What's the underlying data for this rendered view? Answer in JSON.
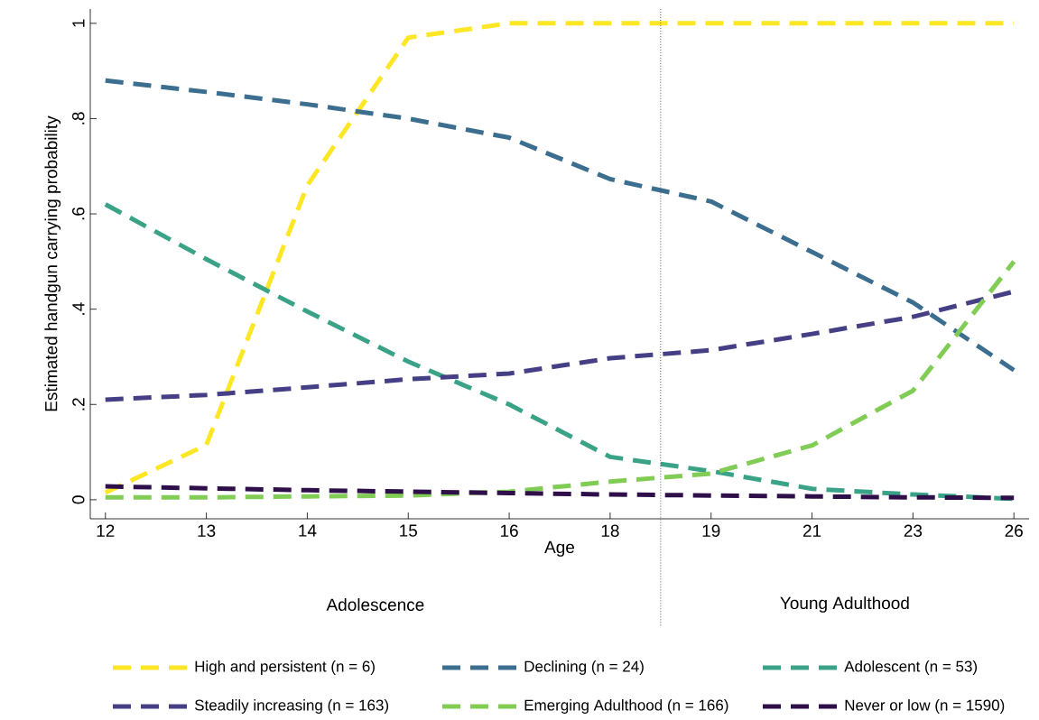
{
  "chart_data": {
    "type": "line",
    "xlabel": "Age",
    "ylabel": "Estimated handgun carrying probability",
    "categories": [
      "12",
      "13",
      "14",
      "15",
      "16",
      "18",
      "19",
      "21",
      "23",
      "26"
    ],
    "ylim": [
      -0.04,
      1.03
    ],
    "yticks": [
      0,
      {
        "value": 0.2,
        "label": ".2"
      },
      {
        "value": 0.4,
        "label": ".4"
      },
      {
        "value": 0.6,
        "label": ".6"
      },
      {
        "value": 0.8,
        "label": ".8"
      },
      1
    ],
    "series": [
      {
        "name": "High and persistent (n = 6)",
        "color": "#fde725",
        "values": [
          0.015,
          0.115,
          0.66,
          0.97,
          1.0,
          1.0,
          1.0,
          1.0,
          1.0,
          1.0
        ]
      },
      {
        "name": "Declining (n = 24)",
        "color": "#3b6e8f",
        "values": [
          0.88,
          0.856,
          0.83,
          0.8,
          0.76,
          0.673,
          0.626,
          0.52,
          0.414,
          0.272
        ]
      },
      {
        "name": "Adolescent (n = 53)",
        "color": "#3aa387",
        "values": [
          0.62,
          0.505,
          0.395,
          0.29,
          0.2,
          0.09,
          0.06,
          0.023,
          0.011,
          0.002
        ]
      },
      {
        "name": "Steadily increasing (n = 163)",
        "color": "#453f85",
        "values": [
          0.21,
          0.22,
          0.236,
          0.253,
          0.265,
          0.297,
          0.314,
          0.348,
          0.384,
          0.437
        ]
      },
      {
        "name": "Emerging Adulthood (n = 166)",
        "color": "#80cc55",
        "values": [
          0.005,
          0.005,
          0.007,
          0.009,
          0.017,
          0.038,
          0.055,
          0.114,
          0.229,
          0.5
        ]
      },
      {
        "name": "Never or low (n = 1590)",
        "color": "#2e0f4a",
        "values": [
          0.028,
          0.024,
          0.02,
          0.017,
          0.014,
          0.011,
          0.009,
          0.007,
          0.005,
          0.004
        ]
      }
    ],
    "annotations": [
      "Adolescence",
      "Young Adulthood"
    ],
    "legend": "bottom",
    "grid": false,
    "line_style": "dashed"
  }
}
